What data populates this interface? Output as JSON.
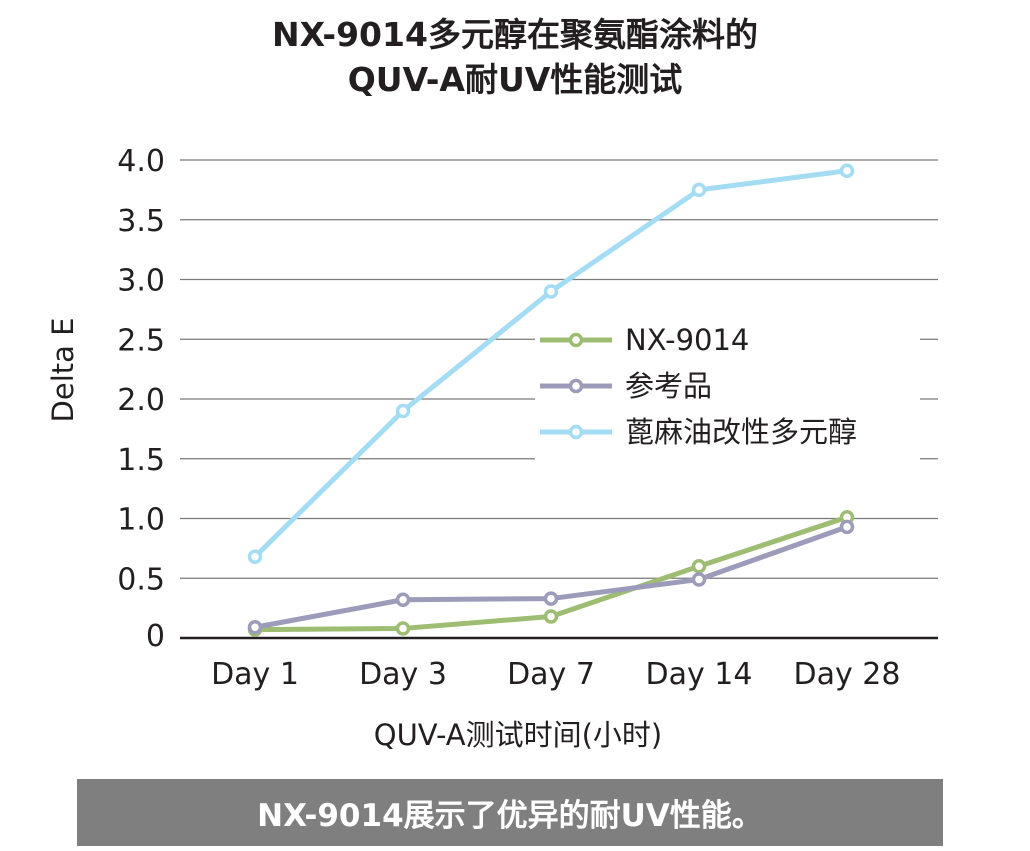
{
  "chart_data": {
    "type": "line",
    "title_lines": [
      "NX-9014多元醇在聚氨酯涂料的",
      "QUV-A耐UV性能测试"
    ],
    "xlabel": "QUV-A测试时间(小时)",
    "ylabel": "Delta E",
    "categories": [
      "Day 1",
      "Day 3",
      "Day 7",
      "Day 14",
      "Day 28"
    ],
    "ylim": [
      0,
      4.0
    ],
    "yticks": [
      0,
      0.5,
      1.0,
      1.5,
      2.0,
      2.5,
      3.0,
      3.5,
      4.0
    ],
    "ytick_labels": [
      "0",
      "0.5",
      "1.0",
      "1.5",
      "2.0",
      "2.5",
      "3.0",
      "3.5",
      "4.0"
    ],
    "grid": true,
    "legend_position": "center-right",
    "series": [
      {
        "name": "NX-9014",
        "color": "#9dbd72",
        "values": [
          0.07,
          0.08,
          0.18,
          0.6,
          1.01
        ]
      },
      {
        "name": "参考品",
        "color": "#9c9cba",
        "values": [
          0.09,
          0.32,
          0.33,
          0.49,
          0.93
        ]
      },
      {
        "name": "蓖麻油改性多元醇",
        "color": "#a3dcf3",
        "values": [
          0.68,
          1.9,
          2.9,
          3.75,
          3.91
        ]
      }
    ]
  },
  "caption": "NX-9014展示了优异的耐UV性能。"
}
